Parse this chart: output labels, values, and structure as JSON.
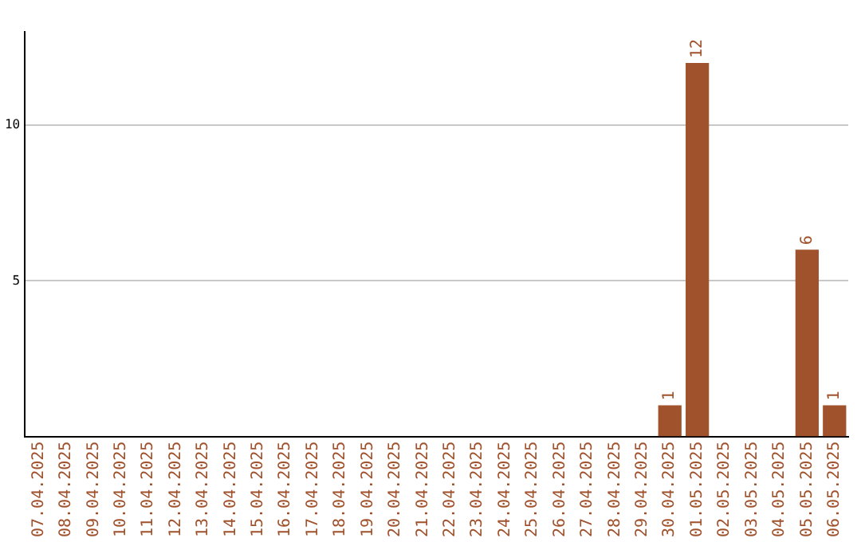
{
  "chart_data": {
    "type": "bar",
    "categories": [
      "07.04.2025",
      "08.04.2025",
      "09.04.2025",
      "10.04.2025",
      "11.04.2025",
      "12.04.2025",
      "13.04.2025",
      "14.04.2025",
      "15.04.2025",
      "16.04.2025",
      "17.04.2025",
      "18.04.2025",
      "19.04.2025",
      "20.04.2025",
      "21.04.2025",
      "22.04.2025",
      "23.04.2025",
      "24.04.2025",
      "25.04.2025",
      "26.04.2025",
      "27.04.2025",
      "28.04.2025",
      "29.04.2025",
      "30.04.2025",
      "01.05.2025",
      "02.05.2025",
      "03.05.2025",
      "04.05.2025",
      "05.05.2025",
      "06.05.2025"
    ],
    "values": [
      0,
      0,
      0,
      0,
      0,
      0,
      0,
      0,
      0,
      0,
      0,
      0,
      0,
      0,
      0,
      0,
      0,
      0,
      0,
      0,
      0,
      0,
      0,
      1,
      12,
      0,
      0,
      0,
      6,
      1
    ],
    "value_labels": [
      null,
      null,
      null,
      null,
      null,
      null,
      null,
      null,
      null,
      null,
      null,
      null,
      null,
      null,
      null,
      null,
      null,
      null,
      null,
      null,
      null,
      null,
      null,
      "1",
      "12",
      null,
      null,
      null,
      "6",
      "1"
    ],
    "color": "#a0522d",
    "ylim": [
      0,
      13
    ],
    "yticks": [
      5,
      10
    ],
    "grid": "y",
    "legend": false
  }
}
